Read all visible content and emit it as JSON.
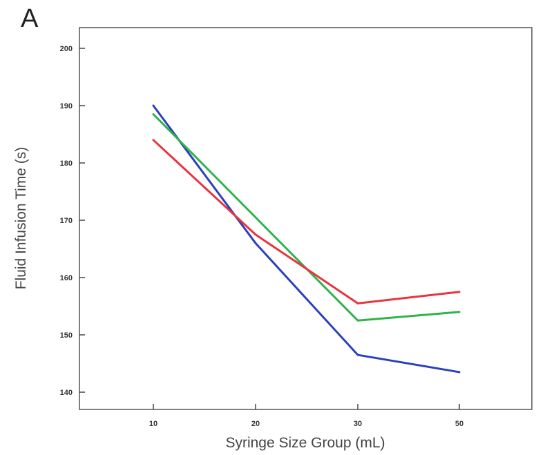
{
  "panel_label": "A",
  "chart_data": {
    "type": "line",
    "title": "",
    "xlabel": "Syringe Size Group (mL)",
    "ylabel": "Fluid Infusion Time (s)",
    "x": [
      10,
      20,
      30,
      50
    ],
    "x_tick_labels": [
      "10",
      "20",
      "30",
      "50"
    ],
    "y_ticks": [
      140,
      150,
      160,
      170,
      180,
      190,
      200
    ],
    "y_tick_labels": [
      "140",
      "150",
      "160",
      "170",
      "180",
      "190",
      "200"
    ],
    "ylim": [
      138,
      203
    ],
    "grid": false,
    "legend": "none",
    "series": [
      {
        "color": "#2b3fbf",
        "values": [
          190,
          166,
          146.5,
          143.5
        ]
      },
      {
        "color": "#2fb34a",
        "values": [
          188.5,
          170.5,
          152.5,
          154
        ]
      },
      {
        "color": "#e8343f",
        "values": [
          184,
          167.5,
          155.5,
          157.5
        ]
      }
    ]
  }
}
